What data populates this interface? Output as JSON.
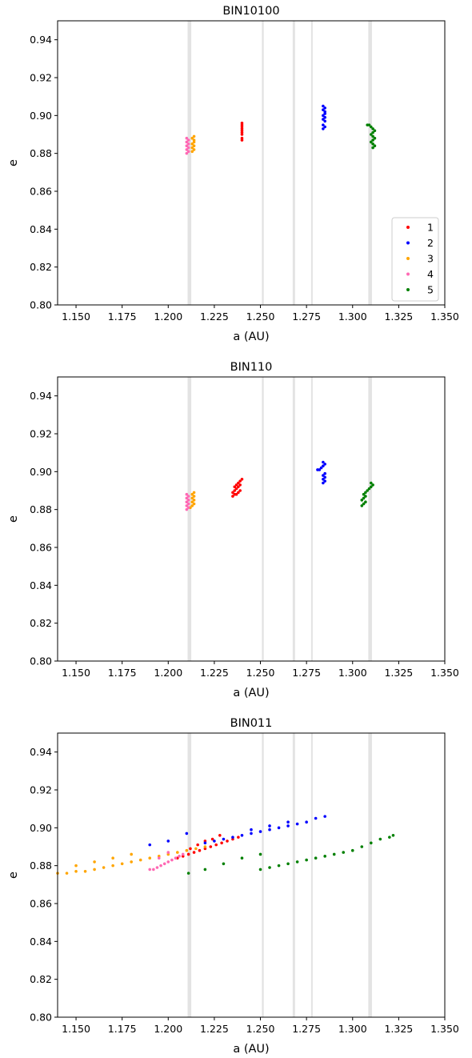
{
  "chart_data": [
    {
      "type": "scatter",
      "title": "BIN10100",
      "xlabel": "a (AU)",
      "ylabel": "e",
      "xlim": [
        1.14,
        1.35
      ],
      "ylim": [
        0.8,
        0.95
      ],
      "xticks": [
        1.15,
        1.175,
        1.2,
        1.225,
        1.25,
        1.275,
        1.3,
        1.325,
        1.35
      ],
      "xtick_labels": [
        "1.150",
        "1.175",
        "1.200",
        "1.225",
        "1.250",
        "1.275",
        "1.300",
        "1.325",
        "1.350"
      ],
      "yticks": [
        0.8,
        0.82,
        0.84,
        0.86,
        0.88,
        0.9,
        0.92,
        0.94
      ],
      "ytick_labels": [
        "0.80",
        "0.82",
        "0.84",
        "0.86",
        "0.88",
        "0.90",
        "0.92",
        "0.94"
      ],
      "grid": false,
      "legend": "lower-right",
      "resonance_bands": [
        [
          1.2105,
          1.2125
        ],
        [
          1.2508,
          1.2518
        ],
        [
          1.2675,
          1.2688
        ],
        [
          1.2775,
          1.2782
        ],
        [
          1.3085,
          1.3105
        ]
      ],
      "series": [
        {
          "name": "1",
          "color": "#ff0000",
          "x": [
            1.24,
            1.24,
            1.24,
            1.24,
            1.24,
            1.24,
            1.24,
            1.24,
            1.24
          ],
          "y": [
            0.887,
            0.888,
            0.89,
            0.891,
            0.892,
            0.893,
            0.894,
            0.895,
            0.896
          ]
        },
        {
          "name": "2",
          "color": "#0000ff",
          "x": [
            1.284,
            1.285,
            1.284,
            1.285,
            1.284,
            1.285,
            1.284,
            1.285,
            1.285,
            1.284,
            1.285,
            1.284
          ],
          "y": [
            0.893,
            0.894,
            0.895,
            0.897,
            0.898,
            0.899,
            0.9,
            0.901,
            0.902,
            0.903,
            0.904,
            0.905
          ]
        },
        {
          "name": "3",
          "color": "#ffa500",
          "x": [
            1.213,
            1.214,
            1.213,
            1.214,
            1.213,
            1.214,
            1.214,
            1.213,
            1.214
          ],
          "y": [
            0.881,
            0.882,
            0.883,
            0.884,
            0.885,
            0.886,
            0.887,
            0.888,
            0.889
          ]
        },
        {
          "name": "4",
          "color": "#ff69b4",
          "x": [
            1.21,
            1.211,
            1.21,
            1.211,
            1.21,
            1.211,
            1.21,
            1.211,
            1.21
          ],
          "y": [
            0.88,
            0.881,
            0.882,
            0.883,
            0.884,
            0.885,
            0.886,
            0.887,
            0.888
          ]
        },
        {
          "name": "5",
          "color": "#008000",
          "x": [
            1.308,
            1.309,
            1.31,
            1.311,
            1.312,
            1.311,
            1.31,
            1.311,
            1.312,
            1.311,
            1.31,
            1.311,
            1.312,
            1.311
          ],
          "y": [
            0.895,
            0.895,
            0.894,
            0.893,
            0.892,
            0.891,
            0.89,
            0.889,
            0.888,
            0.887,
            0.886,
            0.885,
            0.884,
            0.883
          ]
        }
      ]
    },
    {
      "type": "scatter",
      "title": "BIN110",
      "xlabel": "a (AU)",
      "ylabel": "e",
      "xlim": [
        1.14,
        1.35
      ],
      "ylim": [
        0.8,
        0.95
      ],
      "xticks": [
        1.15,
        1.175,
        1.2,
        1.225,
        1.25,
        1.275,
        1.3,
        1.325,
        1.35
      ],
      "xtick_labels": [
        "1.150",
        "1.175",
        "1.200",
        "1.225",
        "1.250",
        "1.275",
        "1.300",
        "1.325",
        "1.350"
      ],
      "yticks": [
        0.8,
        0.82,
        0.84,
        0.86,
        0.88,
        0.9,
        0.92,
        0.94
      ],
      "ytick_labels": [
        "0.80",
        "0.82",
        "0.84",
        "0.86",
        "0.88",
        "0.90",
        "0.92",
        "0.94"
      ],
      "grid": false,
      "resonance_bands": [
        [
          1.2105,
          1.2125
        ],
        [
          1.2508,
          1.2518
        ],
        [
          1.2675,
          1.2688
        ],
        [
          1.2775,
          1.2782
        ],
        [
          1.3085,
          1.3105
        ]
      ],
      "series": [
        {
          "name": "1",
          "color": "#ff0000",
          "x": [
            1.235,
            1.236,
            1.237,
            1.238,
            1.239,
            1.235,
            1.236,
            1.237,
            1.238,
            1.239,
            1.236,
            1.237,
            1.238,
            1.239,
            1.24
          ],
          "y": [
            0.887,
            0.888,
            0.888,
            0.889,
            0.89,
            0.889,
            0.89,
            0.891,
            0.892,
            0.893,
            0.892,
            0.893,
            0.894,
            0.895,
            0.896
          ]
        },
        {
          "name": "2",
          "color": "#0000ff",
          "x": [
            1.281,
            1.282,
            1.283,
            1.284,
            1.285,
            1.284,
            1.285,
            1.284,
            1.285,
            1.284,
            1.285,
            1.284
          ],
          "y": [
            0.901,
            0.901,
            0.902,
            0.903,
            0.904,
            0.905,
            0.899,
            0.898,
            0.897,
            0.896,
            0.895,
            0.894
          ]
        },
        {
          "name": "3",
          "color": "#ffa500",
          "x": [
            1.212,
            1.213,
            1.214,
            1.213,
            1.214,
            1.213,
            1.214,
            1.213,
            1.214
          ],
          "y": [
            0.881,
            0.882,
            0.883,
            0.884,
            0.885,
            0.886,
            0.887,
            0.888,
            0.889
          ]
        },
        {
          "name": "4",
          "color": "#ff69b4",
          "x": [
            1.21,
            1.211,
            1.21,
            1.211,
            1.21,
            1.211,
            1.21,
            1.211,
            1.21
          ],
          "y": [
            0.88,
            0.881,
            0.882,
            0.883,
            0.884,
            0.885,
            0.886,
            0.887,
            0.888
          ]
        },
        {
          "name": "5",
          "color": "#008000",
          "x": [
            1.305,
            1.306,
            1.307,
            1.305,
            1.306,
            1.307,
            1.306,
            1.307,
            1.308,
            1.309,
            1.31,
            1.311,
            1.31
          ],
          "y": [
            0.882,
            0.883,
            0.884,
            0.885,
            0.886,
            0.887,
            0.888,
            0.889,
            0.89,
            0.891,
            0.892,
            0.893,
            0.894
          ]
        }
      ]
    },
    {
      "type": "scatter",
      "title": "BIN011",
      "xlabel": "a (AU)",
      "ylabel": "e",
      "xlim": [
        1.14,
        1.35
      ],
      "ylim": [
        0.8,
        0.95
      ],
      "xticks": [
        1.15,
        1.175,
        1.2,
        1.225,
        1.25,
        1.275,
        1.3,
        1.325,
        1.35
      ],
      "xtick_labels": [
        "1.150",
        "1.175",
        "1.200",
        "1.225",
        "1.250",
        "1.275",
        "1.300",
        "1.325",
        "1.350"
      ],
      "yticks": [
        0.8,
        0.82,
        0.84,
        0.86,
        0.88,
        0.9,
        0.92,
        0.94
      ],
      "ytick_labels": [
        "0.80",
        "0.82",
        "0.84",
        "0.86",
        "0.88",
        "0.90",
        "0.92",
        "0.94"
      ],
      "grid": false,
      "resonance_bands": [
        [
          1.2105,
          1.2125
        ],
        [
          1.2508,
          1.2518
        ],
        [
          1.2675,
          1.2688
        ],
        [
          1.2775,
          1.2782
        ],
        [
          1.3085,
          1.3105
        ]
      ],
      "series": [
        {
          "name": "1",
          "color": "#ff0000",
          "x": [
            1.205,
            1.208,
            1.211,
            1.214,
            1.217,
            1.22,
            1.223,
            1.226,
            1.229,
            1.232,
            1.235,
            1.238,
            1.212,
            1.216,
            1.22,
            1.224,
            1.228
          ],
          "y": [
            0.884,
            0.885,
            0.886,
            0.887,
            0.888,
            0.889,
            0.89,
            0.891,
            0.892,
            0.893,
            0.894,
            0.895,
            0.889,
            0.891,
            0.893,
            0.894,
            0.896
          ]
        },
        {
          "name": "2",
          "color": "#0000ff",
          "x": [
            1.22,
            1.225,
            1.23,
            1.235,
            1.24,
            1.245,
            1.25,
            1.255,
            1.26,
            1.265,
            1.27,
            1.275,
            1.28,
            1.285,
            1.21,
            1.2,
            1.19,
            1.245,
            1.255,
            1.265
          ],
          "y": [
            0.892,
            0.893,
            0.894,
            0.895,
            0.896,
            0.897,
            0.898,
            0.899,
            0.9,
            0.901,
            0.902,
            0.903,
            0.905,
            0.906,
            0.897,
            0.893,
            0.891,
            0.899,
            0.901,
            0.903
          ]
        },
        {
          "name": "3",
          "color": "#ffa500",
          "x": [
            1.14,
            1.145,
            1.15,
            1.155,
            1.16,
            1.165,
            1.17,
            1.175,
            1.18,
            1.185,
            1.19,
            1.195,
            1.2,
            1.205,
            1.21,
            1.215,
            1.22,
            1.15,
            1.16,
            1.17,
            1.18
          ],
          "y": [
            0.876,
            0.876,
            0.877,
            0.877,
            0.878,
            0.879,
            0.88,
            0.881,
            0.882,
            0.883,
            0.884,
            0.885,
            0.886,
            0.887,
            0.888,
            0.889,
            0.89,
            0.88,
            0.882,
            0.884,
            0.886
          ]
        },
        {
          "name": "4",
          "color": "#ff69b4",
          "x": [
            1.19,
            1.192,
            1.194,
            1.196,
            1.198,
            1.2,
            1.202,
            1.204,
            1.206,
            1.208,
            1.195,
            1.2
          ],
          "y": [
            0.878,
            0.878,
            0.879,
            0.88,
            0.881,
            0.882,
            0.883,
            0.884,
            0.885,
            0.886,
            0.884,
            0.887
          ]
        },
        {
          "name": "5",
          "color": "#008000",
          "x": [
            1.25,
            1.255,
            1.26,
            1.265,
            1.27,
            1.275,
            1.28,
            1.285,
            1.29,
            1.295,
            1.3,
            1.305,
            1.31,
            1.315,
            1.32,
            1.322,
            1.211,
            1.22,
            1.23,
            1.24,
            1.25
          ],
          "y": [
            0.878,
            0.879,
            0.88,
            0.881,
            0.882,
            0.883,
            0.884,
            0.885,
            0.886,
            0.887,
            0.888,
            0.89,
            0.892,
            0.894,
            0.895,
            0.896,
            0.876,
            0.878,
            0.881,
            0.884,
            0.886
          ]
        }
      ]
    }
  ]
}
